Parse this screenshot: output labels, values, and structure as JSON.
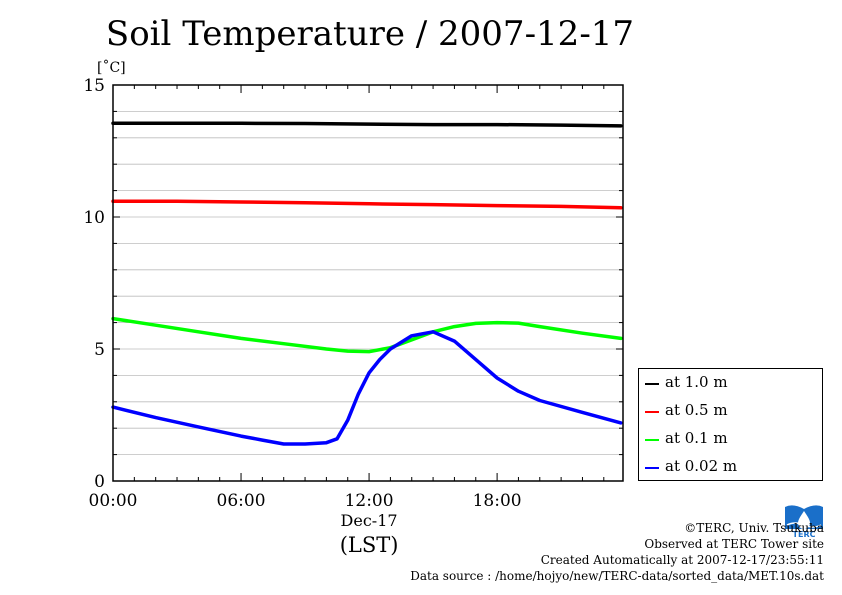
{
  "chart_data": {
    "type": "line",
    "title": "Soil Temperature / 2007-12-17",
    "y_unit_label": "[˚C]",
    "ylim": [
      0,
      15
    ],
    "y_ticks": [
      0,
      5,
      10,
      15
    ],
    "xlim": [
      0,
      23.9
    ],
    "x_ticks": [
      {
        "value": 0,
        "label": "00:00"
      },
      {
        "value": 6,
        "label": "06:00"
      },
      {
        "value": 12,
        "label": "12:00"
      },
      {
        "value": 18,
        "label": "18:00"
      }
    ],
    "x_date_label": "Dec-17",
    "x_axis_label": "(LST)",
    "grid": true,
    "legend_position": "right",
    "series": [
      {
        "name": "at 1.0 m",
        "color": "#000000",
        "x": [
          0,
          3,
          6,
          9,
          12,
          15,
          18,
          21,
          23.8
        ],
        "y": [
          13.55,
          13.55,
          13.55,
          13.54,
          13.52,
          13.5,
          13.5,
          13.48,
          13.45
        ]
      },
      {
        "name": "at 0.5 m",
        "color": "#ff0000",
        "x": [
          0,
          3,
          6,
          9,
          12,
          15,
          18,
          21,
          23.8
        ],
        "y": [
          10.6,
          10.6,
          10.57,
          10.54,
          10.5,
          10.47,
          10.43,
          10.4,
          10.35
        ]
      },
      {
        "name": "at 0.1 m",
        "color": "#00ff00",
        "x": [
          0,
          2,
          4,
          6,
          8,
          10,
          11,
          12,
          13,
          14,
          15,
          16,
          17,
          18,
          19,
          20,
          22,
          23.8
        ],
        "y": [
          6.15,
          5.9,
          5.65,
          5.4,
          5.2,
          5.0,
          4.92,
          4.9,
          5.05,
          5.35,
          5.65,
          5.85,
          5.97,
          6.0,
          5.98,
          5.85,
          5.6,
          5.4
        ]
      },
      {
        "name": "at 0.02 m",
        "color": "#0000ff",
        "x": [
          0,
          2,
          4,
          6,
          7,
          8,
          9,
          10,
          10.5,
          11,
          11.5,
          12,
          12.5,
          13,
          14,
          15,
          16,
          17,
          18,
          19,
          20,
          22,
          23.8
        ],
        "y": [
          2.8,
          2.4,
          2.05,
          1.7,
          1.55,
          1.4,
          1.4,
          1.45,
          1.6,
          2.3,
          3.3,
          4.1,
          4.6,
          5.0,
          5.5,
          5.65,
          5.3,
          4.6,
          3.9,
          3.4,
          3.05,
          2.6,
          2.2
        ]
      }
    ]
  },
  "credits": {
    "copyright": "©TERC, Univ. Tsukuba",
    "observed": "Observed at TERC Tower site",
    "created": "Created Automatically at 2007-12-17/23:55:11",
    "source": "Data source : /home/hojyo/new/TERC-data/sorted_data/MET.10s.dat"
  },
  "logo": {
    "text": "TERC",
    "color": "#0066cc"
  }
}
